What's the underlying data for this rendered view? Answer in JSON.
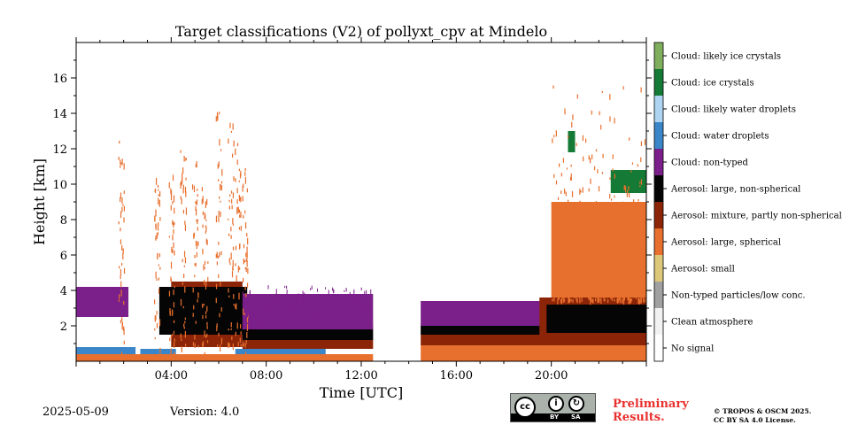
{
  "chart_data": {
    "type": "heatmap",
    "title": "Target classifications (V2) of pollyxt_cpv at Mindelo",
    "xlabel": "Time [UTC]",
    "ylabel": "Height [km]",
    "xlim_hours": [
      0,
      24
    ],
    "ylim_km": [
      0,
      18
    ],
    "x_ticks": [
      {
        "hour": 4,
        "label": "04:00"
      },
      {
        "hour": 8,
        "label": "08:00"
      },
      {
        "hour": 12,
        "label": "12:00"
      },
      {
        "hour": 16,
        "label": "16:00"
      },
      {
        "hour": 20,
        "label": "20:00"
      }
    ],
    "y_ticks": [
      {
        "km": 2,
        "label": "2"
      },
      {
        "km": 4,
        "label": "4"
      },
      {
        "km": 6,
        "label": "6"
      },
      {
        "km": 8,
        "label": "8"
      },
      {
        "km": 10,
        "label": "10"
      },
      {
        "km": 12,
        "label": "12"
      },
      {
        "km": 14,
        "label": "14"
      },
      {
        "km": 16,
        "label": "16"
      }
    ],
    "classes": [
      {
        "label": "No signal",
        "color": "#ffffff"
      },
      {
        "label": "Clean atmosphere",
        "color": "#f2f2f2"
      },
      {
        "label": "Non-typed particles/low conc.",
        "color": "#a0a0a0"
      },
      {
        "label": "Aerosol: small",
        "color": "#dcc77a"
      },
      {
        "label": "Aerosol: large, spherical",
        "color": "#e8702e"
      },
      {
        "label": "Aerosol: mixture, partly non-spherical",
        "color": "#8c2508"
      },
      {
        "label": "Aerosol: large, non-spherical",
        "color": "#050505"
      },
      {
        "label": "Cloud: non-typed",
        "color": "#7b1f8a"
      },
      {
        "label": "Cloud: water droplets",
        "color": "#3b86c8"
      },
      {
        "label": "Cloud: likely water droplets",
        "color": "#aed4f2"
      },
      {
        "label": "Cloud: ice crystals",
        "color": "#157a35"
      },
      {
        "label": "Cloud: likely ice crystals",
        "color": "#7fae5d"
      }
    ],
    "data_gaps_hours": [
      [
        12.5,
        14.5
      ]
    ],
    "layers": [
      {
        "class": "Cloud: water droplets",
        "from_hour": 0,
        "to_hour": 2.5,
        "bottom_km": 0.4,
        "top_km": 0.8
      },
      {
        "class": "Cloud: water droplets",
        "from_hour": 2.7,
        "to_hour": 4.2,
        "bottom_km": 0.4,
        "top_km": 0.7
      },
      {
        "class": "Cloud: water droplets",
        "from_hour": 6.7,
        "to_hour": 10.5,
        "bottom_km": 0.3,
        "top_km": 0.7
      },
      {
        "class": "Aerosol: large, spherical",
        "from_hour": 0,
        "to_hour": 12.5,
        "bottom_km": 0,
        "top_km": 0.4
      },
      {
        "class": "Aerosol: large, spherical",
        "from_hour": 14.5,
        "to_hour": 24,
        "bottom_km": 0,
        "top_km": 0.9
      },
      {
        "class": "Aerosol: mixture, partly non-spherical",
        "from_hour": 4,
        "to_hour": 7,
        "bottom_km": 0.8,
        "top_km": 4.5
      },
      {
        "class": "Aerosol: large, non-spherical",
        "from_hour": 3.5,
        "to_hour": 7.2,
        "bottom_km": 1.5,
        "top_km": 4.2
      },
      {
        "class": "Aerosol: mixture, partly non-spherical",
        "from_hour": 7,
        "to_hour": 12.5,
        "bottom_km": 0.7,
        "top_km": 2.2
      },
      {
        "class": "Aerosol: large, non-spherical",
        "from_hour": 7,
        "to_hour": 12.5,
        "bottom_km": 1.2,
        "top_km": 2.0
      },
      {
        "class": "Cloud: non-typed",
        "from_hour": 7,
        "to_hour": 12.5,
        "bottom_km": 1.8,
        "top_km": 3.8
      },
      {
        "class": "Cloud: non-typed",
        "from_hour": 0,
        "to_hour": 2.2,
        "bottom_km": 2.5,
        "top_km": 4.2
      },
      {
        "class": "Aerosol: mixture, partly non-spherical",
        "from_hour": 14.5,
        "to_hour": 24,
        "bottom_km": 0.9,
        "top_km": 2.0
      },
      {
        "class": "Aerosol: large, non-spherical",
        "from_hour": 14.5,
        "to_hour": 19.5,
        "bottom_km": 1.5,
        "top_km": 2.2
      },
      {
        "class": "Cloud: non-typed",
        "from_hour": 14.5,
        "to_hour": 20,
        "bottom_km": 2.0,
        "top_km": 3.4
      },
      {
        "class": "Aerosol: large, spherical",
        "from_hour": 20,
        "to_hour": 24,
        "bottom_km": 3.5,
        "top_km": 9.0
      },
      {
        "class": "Aerosol: mixture, partly non-spherical",
        "from_hour": 19.5,
        "to_hour": 24,
        "bottom_km": 2.0,
        "top_km": 3.6
      },
      {
        "class": "Aerosol: large, non-spherical",
        "from_hour": 19.8,
        "to_hour": 24,
        "bottom_km": 1.6,
        "top_km": 3.2
      },
      {
        "class": "Cloud: ice crystals",
        "from_hour": 22.5,
        "to_hour": 24,
        "bottom_km": 9.5,
        "top_km": 10.8
      },
      {
        "class": "Cloud: ice crystals",
        "from_hour": 20.7,
        "to_hour": 21.0,
        "bottom_km": 11.8,
        "top_km": 13.0
      }
    ]
  },
  "footer": {
    "date": "2025-05-09",
    "version": "Version: 4.0",
    "preliminary_line1": "Preliminary",
    "preliminary_line2": "Results.",
    "copyright_line1": "© TROPOS & OSCM 2025.",
    "copyright_line2": "CC BY SA 4.0 License.",
    "license_badge_text": "cc",
    "license_by": "BY",
    "license_sa": "SA"
  }
}
